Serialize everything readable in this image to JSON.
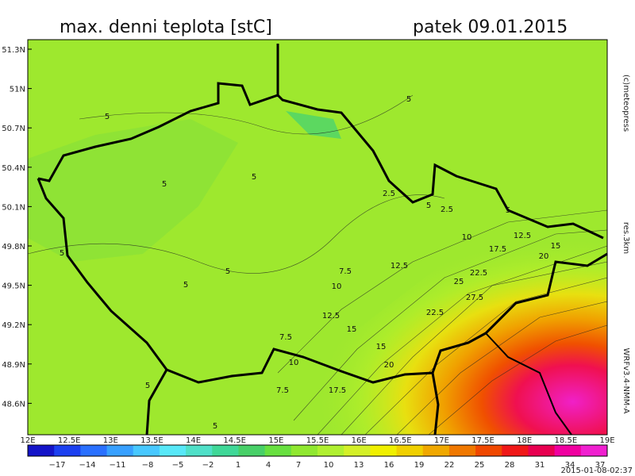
{
  "header": {
    "title": "max. denni teplota [stC]",
    "date": "patek 09.01.2015"
  },
  "map": {
    "lat_labels": [
      "51.3N",
      "51N",
      "50.7N",
      "50.4N",
      "50.1N",
      "49.8N",
      "49.5N",
      "49.2N",
      "48.9N",
      "48.6N"
    ],
    "lon_labels": [
      "12E",
      "12.5E",
      "13E",
      "13.5E",
      "14E",
      "14.5E",
      "15E",
      "15.5E",
      "16E",
      "16.5E",
      "17E",
      "17.5E",
      "18E",
      "18.5E",
      "19E"
    ],
    "contour_labels": [
      "5",
      "5",
      "5",
      "5",
      "5",
      "5",
      "5",
      "5",
      "5",
      "5",
      "5",
      "2.5",
      "2.5",
      "7.5",
      "7.5",
      "7.5",
      "10",
      "10",
      "10",
      "12.5",
      "12.5",
      "12.5",
      "15",
      "15",
      "15",
      "17.5",
      "17.5",
      "20",
      "20",
      "22.5",
      "22.5",
      "25",
      "27.5"
    ],
    "copyright": "(c)meteopress",
    "resolution": "res.3km",
    "model": "WRFv3.4-NMM-A"
  },
  "legend": {
    "labels": [
      "−17",
      "−14",
      "−11",
      "−8",
      "−5",
      "−2",
      "1",
      "4",
      "7",
      "10",
      "13",
      "16",
      "19",
      "22",
      "25",
      "28",
      "31",
      "34",
      "37"
    ],
    "colors": [
      "#1414c8",
      "#1c40f0",
      "#2a70ff",
      "#38a0ff",
      "#48c8ff",
      "#58e8f8",
      "#50e0c8",
      "#40d898",
      "#48d068",
      "#68e040",
      "#90e830",
      "#b0f030",
      "#d4f028",
      "#f0f000",
      "#f0d000",
      "#f0a800",
      "#f07800",
      "#f04800",
      "#f01818",
      "#e80050",
      "#f000a0",
      "#f020d0"
    ]
  },
  "footer": {
    "timestamp": "2015-01-08-02:37"
  }
}
